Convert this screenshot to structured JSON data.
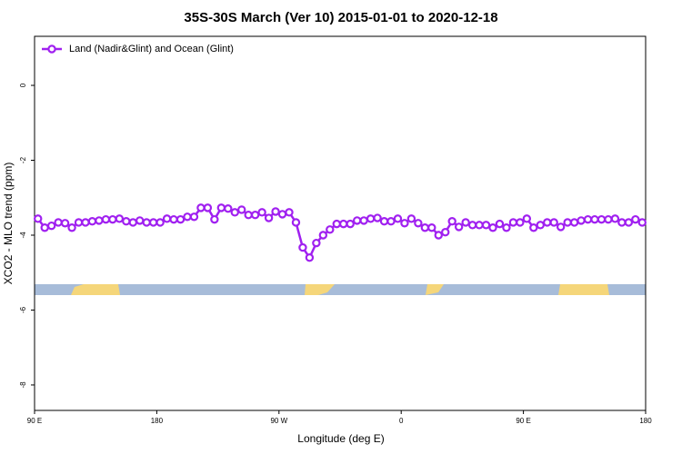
{
  "chart_data": {
    "type": "line",
    "title": "35S-30S March (Ver 10)   2015-01-01 to 2020-12-18",
    "x_label": "Longitude (deg E)",
    "y_label": "XCO2 - MLO trend (ppm)",
    "legend_position": "top-left",
    "xlim": [
      90,
      540
    ],
    "ylim": [
      -8.68,
      1.31
    ],
    "xticks": [
      {
        "value": 90,
        "label": "90 E"
      },
      {
        "value": 180,
        "label": "180"
      },
      {
        "value": 270,
        "label": "90 W"
      },
      {
        "value": 360,
        "label": "0"
      },
      {
        "value": 450,
        "label": "90 E"
      },
      {
        "value": 540,
        "label": "180"
      }
    ],
    "yticks": [
      0,
      -2,
      -4,
      -6,
      -8
    ],
    "x": [
      92.5,
      97.5,
      102.5,
      107.5,
      112.5,
      117.5,
      122.5,
      127.5,
      132.5,
      137.5,
      142.5,
      147.5,
      152.5,
      157.5,
      162.5,
      167.5,
      172.5,
      177.5,
      182.5,
      187.5,
      192.5,
      197.5,
      202.5,
      207.5,
      212.5,
      217.5,
      222.5,
      227.5,
      232.5,
      237.5,
      242.5,
      247.5,
      252.5,
      257.5,
      262.5,
      267.5,
      272.5,
      277.5,
      282.5,
      287.5,
      292.5,
      297.5,
      302.5,
      307.5,
      312.5,
      317.5,
      322.5,
      327.5,
      332.5,
      337.5,
      342.5,
      347.5,
      352.5,
      357.5,
      362.5,
      367.5,
      372.5,
      377.5,
      382.5,
      387.5,
      392.5,
      397.5,
      402.5,
      407.5,
      412.5,
      417.5,
      422.5,
      427.5,
      432.5,
      437.5,
      442.5,
      447.5,
      452.5,
      457.5,
      462.5,
      467.5,
      472.5,
      477.5,
      482.5,
      487.5,
      492.5,
      497.5,
      502.5,
      507.5,
      512.5,
      517.5,
      522.5,
      527.5,
      532.5,
      537.5
    ],
    "series": [
      {
        "name": "Land (Nadir&Glint) and Ocean (Glint)",
        "color": "#a020f0",
        "values": [
          -3.56,
          -3.8,
          -3.75,
          -3.66,
          -3.68,
          -3.8,
          -3.66,
          -3.66,
          -3.63,
          -3.61,
          -3.58,
          -3.58,
          -3.56,
          -3.63,
          -3.66,
          -3.61,
          -3.66,
          -3.66,
          -3.66,
          -3.56,
          -3.58,
          -3.58,
          -3.51,
          -3.51,
          -3.27,
          -3.27,
          -3.58,
          -3.27,
          -3.29,
          -3.39,
          -3.32,
          -3.46,
          -3.46,
          -3.39,
          -3.54,
          -3.37,
          -3.44,
          -3.39,
          -3.66,
          -4.33,
          -4.6,
          -4.21,
          -4.0,
          -3.85,
          -3.7,
          -3.7,
          -3.7,
          -3.61,
          -3.61,
          -3.56,
          -3.54,
          -3.63,
          -3.63,
          -3.56,
          -3.68,
          -3.56,
          -3.68,
          -3.8,
          -3.8,
          -4.0,
          -3.92,
          -3.63,
          -3.78,
          -3.66,
          -3.73,
          -3.73,
          -3.73,
          -3.8,
          -3.7,
          -3.8,
          -3.66,
          -3.66,
          -3.56,
          -3.8,
          -3.73,
          -3.66,
          -3.66,
          -3.78,
          -3.66,
          -3.66,
          -3.61,
          -3.58,
          -3.58,
          -3.58,
          -3.58,
          -3.56,
          -3.66,
          -3.66,
          -3.58,
          -3.66
        ]
      }
    ]
  }
}
